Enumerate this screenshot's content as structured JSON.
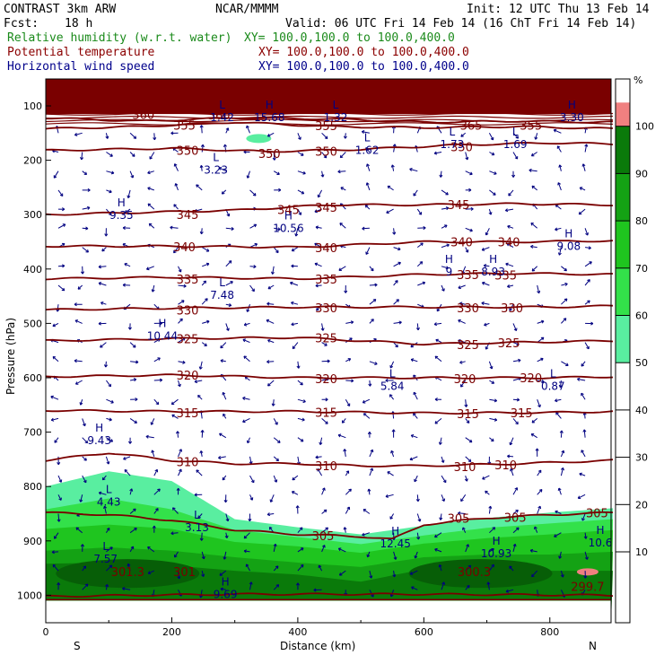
{
  "header": {
    "model": "CONTRAST  3km ARW",
    "center": "NCAR/MMMM",
    "init": "Init: 12 UTC Thu 13 Feb 14",
    "fcst_label": "Fcst:",
    "fcst_value": "18 h",
    "valid": "Valid: 06 UTC Fri 14 Feb 14 (16 ChT Fri 14 Feb 14)",
    "fields": [
      {
        "name": "Relative humidity (w.r.t. water)",
        "xy": "XY= 100.0,100.0 to 100.0,400.0",
        "color": "#1a8a1a"
      },
      {
        "name": "Potential temperature",
        "xy": "XY= 100.0,100.0 to 100.0,400.0",
        "color": "#8b0000"
      },
      {
        "name": "Horizontal wind speed",
        "xy": "XY= 100.0,100.0 to 100.0,400.0",
        "color": "#00008b"
      }
    ]
  },
  "colors": {
    "theta": "#7a0000",
    "wind": "#000080",
    "rh_50": "#59eea0",
    "rh_60": "#33e14a",
    "rh_70": "#1fc51f",
    "rh_80": "#14a214",
    "rh_90": "#0a7a0a",
    "rh_100": "#f08080"
  },
  "chart_data": {
    "type": "cross-section",
    "xlabel": "Distance (km)",
    "ylabel": "Pressure (hPa)",
    "xlim": [
      0,
      900
    ],
    "ylim": [
      1050,
      60
    ],
    "x_ticks": [
      0,
      200,
      400,
      600,
      800
    ],
    "y_ticks": [
      100,
      200,
      300,
      400,
      500,
      600,
      700,
      800,
      900,
      1000
    ],
    "x_end_labels": {
      "left": "S",
      "right": "N"
    },
    "colorbar": {
      "unit": "%",
      "levels": [
        10,
        20,
        30,
        40,
        50,
        60,
        70,
        80,
        90,
        100
      ],
      "filled_bins": [
        {
          "from": 50,
          "to": 60,
          "color": "#59eea0"
        },
        {
          "from": 60,
          "to": 70,
          "color": "#33e14a"
        },
        {
          "from": 70,
          "to": 80,
          "color": "#1fc51f"
        },
        {
          "from": 80,
          "to": 90,
          "color": "#14a214"
        },
        {
          "from": 90,
          "to": 100,
          "color": "#0a7a0a"
        },
        {
          "from": 100,
          "to": 105,
          "color": "#f08080"
        }
      ]
    },
    "theta_contours": [
      {
        "level": 360,
        "p": [
          [
            0,
            122
          ],
          [
            150,
            128
          ],
          [
            300,
            122
          ],
          [
            450,
            124
          ],
          [
            600,
            130
          ],
          [
            750,
            128
          ],
          [
            900,
            130
          ]
        ]
      },
      {
        "level": 355,
        "p": [
          [
            0,
            142
          ],
          [
            150,
            138
          ],
          [
            300,
            130
          ],
          [
            450,
            138
          ],
          [
            600,
            140
          ],
          [
            750,
            138
          ],
          [
            900,
            142
          ]
        ]
      },
      {
        "level": 350,
        "p": [
          [
            0,
            182
          ],
          [
            200,
            178
          ],
          [
            350,
            184
          ],
          [
            500,
            180
          ],
          [
            650,
            172
          ],
          [
            800,
            168
          ],
          [
            900,
            170
          ]
        ]
      },
      {
        "level": 345,
        "p": [
          [
            0,
            300
          ],
          [
            150,
            296
          ],
          [
            300,
            292
          ],
          [
            450,
            282
          ],
          [
            600,
            282
          ],
          [
            750,
            280
          ],
          [
            900,
            282
          ]
        ]
      },
      {
        "level": 340,
        "p": [
          [
            0,
            358
          ],
          [
            200,
            358
          ],
          [
            400,
            360
          ],
          [
            600,
            350
          ],
          [
            750,
            350
          ],
          [
            900,
            348
          ]
        ]
      },
      {
        "level": 335,
        "p": [
          [
            0,
            418
          ],
          [
            200,
            415
          ],
          [
            400,
            418
          ],
          [
            600,
            410
          ],
          [
            750,
            408
          ],
          [
            900,
            410
          ]
        ]
      },
      {
        "level": 330,
        "p": [
          [
            0,
            475
          ],
          [
            200,
            472
          ],
          [
            400,
            470
          ],
          [
            600,
            470
          ],
          [
            800,
            470
          ],
          [
            900,
            468
          ]
        ]
      },
      {
        "level": 325,
        "p": [
          [
            0,
            532
          ],
          [
            200,
            528
          ],
          [
            400,
            526
          ],
          [
            600,
            538
          ],
          [
            800,
            534
          ],
          [
            900,
            532
          ]
        ]
      },
      {
        "level": 320,
        "p": [
          [
            0,
            598
          ],
          [
            200,
            595
          ],
          [
            400,
            600
          ],
          [
            600,
            600
          ],
          [
            800,
            600
          ],
          [
            900,
            598
          ]
        ]
      },
      {
        "level": 315,
        "p": [
          [
            0,
            660
          ],
          [
            200,
            662
          ],
          [
            400,
            662
          ],
          [
            600,
            665
          ],
          [
            800,
            664
          ],
          [
            900,
            662
          ]
        ]
      },
      {
        "level": 310,
        "p": [
          [
            0,
            752
          ],
          [
            100,
            738
          ],
          [
            200,
            752
          ],
          [
            300,
            758
          ],
          [
            400,
            758
          ],
          [
            500,
            762
          ],
          [
            600,
            762
          ],
          [
            750,
            758
          ],
          [
            900,
            752
          ]
        ]
      },
      {
        "level": 305,
        "p": [
          [
            0,
            848
          ],
          [
            100,
            852
          ],
          [
            200,
            862
          ],
          [
            300,
            880
          ],
          [
            400,
            888
          ],
          [
            500,
            892
          ],
          [
            550,
            897
          ],
          [
            600,
            870
          ],
          [
            700,
            858
          ],
          [
            800,
            852
          ],
          [
            900,
            848
          ]
        ]
      },
      {
        "level": 300,
        "p": [
          [
            0,
            1002
          ],
          [
            300,
            998
          ],
          [
            600,
            998
          ],
          [
            900,
            1000
          ]
        ]
      }
    ],
    "theta_labels": [
      {
        "text": "360",
        "x": 155,
        "p": 117
      },
      {
        "text": "355",
        "x": 220,
        "p": 137
      },
      {
        "text": "360",
        "x": 275,
        "p": 118
      },
      {
        "text": "355",
        "x": 445,
        "p": 138
      },
      {
        "text": "365",
        "x": 675,
        "p": 137
      },
      {
        "text": "355",
        "x": 770,
        "p": 137
      },
      {
        "text": "365",
        "x": 20,
        "p": 101
      },
      {
        "text": "350",
        "x": 225,
        "p": 183
      },
      {
        "text": "350",
        "x": 355,
        "p": 189
      },
      {
        "text": "350",
        "x": 445,
        "p": 185
      },
      {
        "text": "350",
        "x": 660,
        "p": 177
      },
      {
        "text": "345",
        "x": 225,
        "p": 301
      },
      {
        "text": "345",
        "x": 385,
        "p": 292
      },
      {
        "text": "345",
        "x": 445,
        "p": 288
      },
      {
        "text": "345",
        "x": 655,
        "p": 283
      },
      {
        "text": "340",
        "x": 220,
        "p": 361
      },
      {
        "text": "340",
        "x": 445,
        "p": 362
      },
      {
        "text": "340",
        "x": 660,
        "p": 352
      },
      {
        "text": "340",
        "x": 735,
        "p": 352
      },
      {
        "text": "335",
        "x": 225,
        "p": 420
      },
      {
        "text": "335",
        "x": 445,
        "p": 420
      },
      {
        "text": "335",
        "x": 670,
        "p": 412
      },
      {
        "text": "335",
        "x": 730,
        "p": 413
      },
      {
        "text": "330",
        "x": 225,
        "p": 477
      },
      {
        "text": "330",
        "x": 445,
        "p": 473
      },
      {
        "text": "330",
        "x": 670,
        "p": 473
      },
      {
        "text": "330",
        "x": 740,
        "p": 473
      },
      {
        "text": "325",
        "x": 225,
        "p": 530
      },
      {
        "text": "325",
        "x": 445,
        "p": 528
      },
      {
        "text": "325",
        "x": 670,
        "p": 541
      },
      {
        "text": "325",
        "x": 735,
        "p": 537
      },
      {
        "text": "320",
        "x": 225,
        "p": 597
      },
      {
        "text": "320",
        "x": 445,
        "p": 603
      },
      {
        "text": "320",
        "x": 665,
        "p": 603
      },
      {
        "text": "320",
        "x": 770,
        "p": 602
      },
      {
        "text": "315",
        "x": 225,
        "p": 666
      },
      {
        "text": "315",
        "x": 445,
        "p": 665
      },
      {
        "text": "315",
        "x": 670,
        "p": 668
      },
      {
        "text": "315",
        "x": 755,
        "p": 666
      },
      {
        "text": "310",
        "x": 225,
        "p": 756
      },
      {
        "text": "310",
        "x": 445,
        "p": 763
      },
      {
        "text": "310",
        "x": 665,
        "p": 765
      },
      {
        "text": "310",
        "x": 730,
        "p": 762
      },
      {
        "text": "305",
        "x": 440,
        "p": 892
      },
      {
        "text": "305",
        "x": 655,
        "p": 860
      },
      {
        "text": "305",
        "x": 745,
        "p": 858
      },
      {
        "text": "305",
        "x": 875,
        "p": 850
      },
      {
        "text": "301.3",
        "x": 130,
        "p": 958
      },
      {
        "text": "301",
        "x": 220,
        "p": 958
      },
      {
        "text": "300.3",
        "x": 680,
        "p": 958
      },
      {
        "text": "299.7",
        "x": 860,
        "p": 985
      }
    ],
    "wind_extrema": [
      {
        "type": "H",
        "value": "9.35",
        "x": 120,
        "p": 298
      },
      {
        "type": "H",
        "value": "10.56",
        "x": 385,
        "p": 322
      },
      {
        "type": "L",
        "value": "3.23",
        "x": 270,
        "p": 215
      },
      {
        "type": "L",
        "value": "1.62",
        "x": 510,
        "p": 178
      },
      {
        "type": "L",
        "value": "1.73",
        "x": 645,
        "p": 168
      },
      {
        "type": "L",
        "value": "1.69",
        "x": 745,
        "p": 168
      },
      {
        "type": "L",
        "value": "1.32",
        "x": 460,
        "p": 118
      },
      {
        "type": "H",
        "value": "15.68",
        "x": 355,
        "p": 118
      },
      {
        "type": "L",
        "value": "1.42",
        "x": 280,
        "p": 118
      },
      {
        "type": "H",
        "value": "3.30",
        "x": 835,
        "p": 118
      },
      {
        "type": "H",
        "value": "9.08",
        "x": 830,
        "p": 355
      },
      {
        "type": "L",
        "value": "7.48",
        "x": 280,
        "p": 445
      },
      {
        "type": "H",
        "value": "9",
        "x": 640,
        "p": 402
      },
      {
        "type": "H",
        "value": "8.93",
        "x": 710,
        "p": 402
      },
      {
        "type": "H",
        "value": "10.44",
        "x": 185,
        "p": 520
      },
      {
        "type": "L",
        "value": "5.84",
        "x": 550,
        "p": 612
      },
      {
        "type": "L",
        "value": "0.87",
        "x": 805,
        "p": 612
      },
      {
        "type": "H",
        "value": "9.43",
        "x": 85,
        "p": 712
      },
      {
        "type": "L",
        "value": "4.43",
        "x": 100,
        "p": 825
      },
      {
        "type": "L",
        "value": "3.13",
        "x": 240,
        "p": 872
      },
      {
        "type": "H",
        "value": "12.45",
        "x": 555,
        "p": 902
      },
      {
        "type": "H",
        "value": "10.93",
        "x": 715,
        "p": 920
      },
      {
        "type": "H",
        "value": "10.6",
        "x": 880,
        "p": 900
      },
      {
        "type": "L",
        "value": "7.57",
        "x": 95,
        "p": 930
      },
      {
        "type": "H",
        "value": "9.69",
        "x": 285,
        "p": 995
      }
    ]
  }
}
